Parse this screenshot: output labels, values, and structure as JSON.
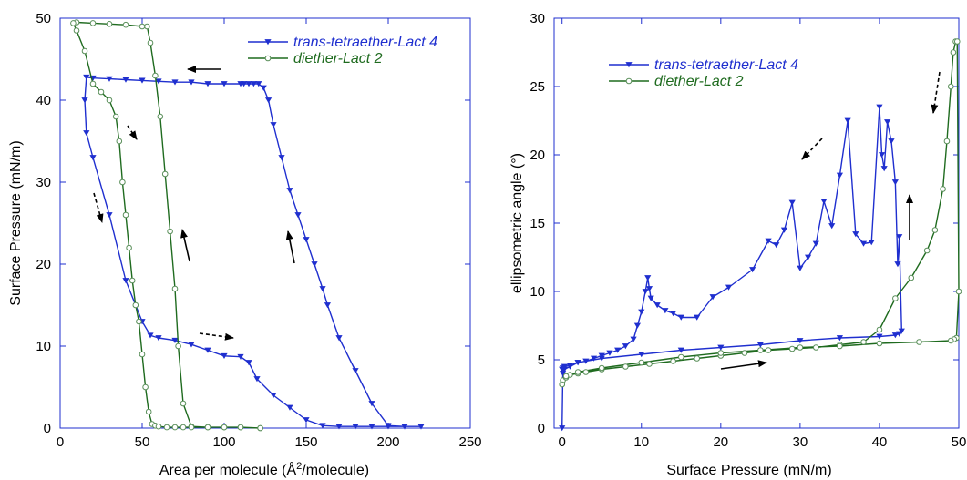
{
  "chart_data": [
    {
      "type": "line",
      "xlabel": "Area per molecule (Å²/molecule)",
      "xlabel_parts": [
        "Area per molecule (Å",
        "2",
        "/molecule)"
      ],
      "ylabel": "Surface Pressure (mN/m)",
      "xlim": [
        0,
        250
      ],
      "ylim": [
        0,
        50
      ],
      "xticks": [
        "0",
        "50",
        "100",
        "150",
        "200",
        "250"
      ],
      "yticks": [
        "0",
        "10",
        "20",
        "30",
        "40",
        "50"
      ],
      "grid": false,
      "legend": "top-right",
      "series": [
        {
          "name": "trans-tetraether-Lact 4",
          "color": "#1f2fcf",
          "marker": "down-triangle",
          "x": [
            220,
            210,
            200,
            190,
            180,
            170,
            163,
            160,
            155,
            150,
            145,
            140,
            135,
            130,
            127,
            124,
            121,
            118,
            115,
            112,
            110,
            100,
            90,
            80,
            70,
            60,
            50,
            40,
            30,
            20,
            16,
            15,
            16,
            20,
            30,
            40,
            50,
            55,
            60,
            70,
            80,
            90,
            100,
            110,
            115,
            120,
            130,
            140,
            150,
            160,
            170,
            180,
            190,
            200,
            210,
            220
          ],
          "y": [
            0.2,
            0.2,
            0.3,
            3,
            7,
            11,
            15,
            17,
            20,
            23,
            26,
            29,
            33,
            37,
            40,
            41.5,
            42,
            42,
            42,
            42,
            42,
            42,
            42,
            42.2,
            42.2,
            42.3,
            42.4,
            42.5,
            42.6,
            42.7,
            42.8,
            40,
            36,
            33,
            26,
            18,
            13,
            11.3,
            11,
            10.7,
            10.2,
            9.5,
            8.8,
            8.7,
            8,
            6,
            4,
            2.5,
            1,
            0.3,
            0.2,
            0.2,
            0.2,
            0.2,
            0.2,
            0.2
          ]
        },
        {
          "name": "diether-Lact 2",
          "color": "#1f6b1f",
          "marker": "open-circle",
          "x": [
            122,
            110,
            100,
            90,
            80,
            75,
            72,
            70,
            67,
            64,
            61,
            58,
            55,
            53,
            50,
            40,
            30,
            20,
            10,
            8,
            10,
            15,
            20,
            25,
            30,
            34,
            36,
            38,
            40,
            42,
            44,
            46,
            48,
            50,
            52,
            54,
            56,
            58,
            60,
            65,
            70,
            75,
            80,
            90,
            100,
            110,
            122
          ],
          "y": [
            0,
            0.1,
            0.1,
            0.1,
            0.2,
            3,
            10,
            17,
            24,
            31,
            38,
            43,
            47,
            49,
            49,
            49.2,
            49.3,
            49.4,
            49.5,
            49.4,
            48.5,
            46,
            42,
            41,
            40,
            38,
            35,
            30,
            26,
            22,
            18,
            15,
            13,
            9,
            5,
            2,
            0.5,
            0.3,
            0.2,
            0.1,
            0.1,
            0.1,
            0.1,
            0.1,
            0.1,
            0.1,
            0
          ]
        }
      ]
    },
    {
      "type": "line",
      "xlabel": "Surface Pressure (mN/m)",
      "ylabel": "ellipsometric angle (°)",
      "xlim": [
        -1,
        50
      ],
      "ylim": [
        0,
        30
      ],
      "xticks": [
        "0",
        "10",
        "20",
        "30",
        "40",
        "50"
      ],
      "yticks": [
        "0",
        "5",
        "10",
        "15",
        "20",
        "25",
        "30"
      ],
      "grid": false,
      "legend": "top-left",
      "series": [
        {
          "name": "trans-tetraether-Lact 4",
          "color": "#1f2fcf",
          "marker": "down-triangle",
          "x": [
            0,
            0.1,
            0.3,
            1,
            2,
            3,
            4,
            5,
            6,
            7,
            8,
            9,
            9.5,
            10,
            10.5,
            10.8,
            11,
            11.2,
            12,
            13,
            14,
            15,
            17,
            19,
            21,
            24,
            26,
            27,
            28,
            29,
            30,
            31,
            32,
            33,
            34,
            35,
            36,
            37,
            38,
            39,
            40,
            40.3,
            40.6,
            41,
            41.5,
            42,
            42.3,
            42.5,
            42.8,
            42.5,
            42,
            40,
            35,
            30,
            25,
            20,
            15,
            10,
            5,
            2,
            1,
            0.3,
            0.1,
            0
          ],
          "y": [
            4.3,
            4.4,
            4.5,
            4.6,
            4.8,
            4.9,
            5.1,
            5.3,
            5.5,
            5.7,
            6.0,
            6.5,
            7.5,
            8.5,
            10,
            11,
            10.2,
            9.5,
            9,
            8.6,
            8.4,
            8.1,
            8.1,
            9.6,
            10.3,
            11.6,
            13.7,
            13.4,
            14.5,
            16.5,
            11.7,
            12.5,
            13.5,
            16.6,
            14.8,
            18.5,
            22.5,
            14.2,
            13.5,
            13.6,
            23.5,
            20,
            19,
            22.4,
            21,
            18,
            12,
            14,
            7.1,
            6.9,
            6.8,
            6.7,
            6.6,
            6.4,
            6.1,
            5.9,
            5.7,
            5.4,
            5.1,
            4.8,
            4.5,
            4.3,
            4.0,
            0
          ]
        },
        {
          "name": "diether-Lact 2",
          "color": "#1f6b1f",
          "marker": "open-circle",
          "x": [
            0,
            0.1,
            0.5,
            1,
            2,
            3,
            5,
            8,
            11,
            14,
            17,
            20,
            23,
            26,
            29,
            32,
            35,
            38,
            40,
            42,
            44,
            46,
            47,
            48,
            48.5,
            49,
            49.3,
            49.6,
            49.8,
            50,
            49.7,
            49.4,
            49,
            45,
            40,
            35,
            30,
            25,
            20,
            15,
            10,
            5,
            2,
            0.5,
            0
          ],
          "y": [
            3.2,
            3.5,
            3.7,
            3.9,
            4.0,
            4.1,
            4.3,
            4.5,
            4.7,
            4.9,
            5.1,
            5.3,
            5.5,
            5.7,
            5.8,
            5.9,
            6.1,
            6.3,
            7.2,
            9.5,
            11,
            13,
            14.5,
            17.5,
            21,
            25,
            27.5,
            28.3,
            28.3,
            10,
            6.6,
            6.5,
            6.4,
            6.3,
            6.2,
            6.0,
            5.9,
            5.7,
            5.5,
            5.2,
            4.8,
            4.4,
            4.1,
            3.8,
            3.2
          ]
        }
      ]
    }
  ]
}
